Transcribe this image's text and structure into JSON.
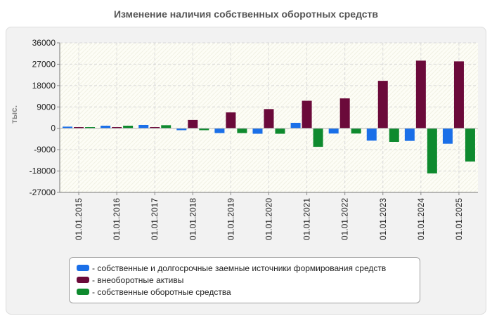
{
  "chart_data": {
    "type": "bar",
    "title": "Изменение наличия собственных оборотных средств",
    "ylabel": "тыс.",
    "xlabel": "",
    "ylim": [
      -27000,
      36000
    ],
    "yticks": [
      36000,
      27000,
      18000,
      9000,
      0,
      -9000,
      -18000,
      -27000
    ],
    "yticklabels": [
      "36000",
      "27000",
      "18000",
      "9000",
      "0",
      "-9000",
      "-18000",
      "-27000"
    ],
    "categories": [
      "01.01.2015",
      "01.01.2016",
      "01.01.2017",
      "01.01.2018",
      "01.01.2019",
      "01.01.2020",
      "01.01.2021",
      "01.01.2022",
      "01.01.2023",
      "01.01.2024",
      "01.01.2025"
    ],
    "series": [
      {
        "name": "- собственные и долгосрочные заемные источники формирования средств",
        "color": "#1a6fe8",
        "values": [
          700,
          1100,
          1400,
          -800,
          -2000,
          -2300,
          2300,
          -2200,
          -5200,
          -5300,
          -6500
        ]
      },
      {
        "name": "- внеоборотные активы",
        "color": "#6b0a3a",
        "values": [
          500,
          500,
          500,
          3500,
          6700,
          8100,
          11600,
          12600,
          20000,
          28500,
          28200
        ]
      },
      {
        "name": "- собственные оборотные средства",
        "color": "#0e8a2e",
        "values": [
          500,
          1100,
          1300,
          -800,
          -2000,
          -2300,
          -7800,
          -2200,
          -5700,
          -19000,
          -14000
        ]
      }
    ]
  }
}
